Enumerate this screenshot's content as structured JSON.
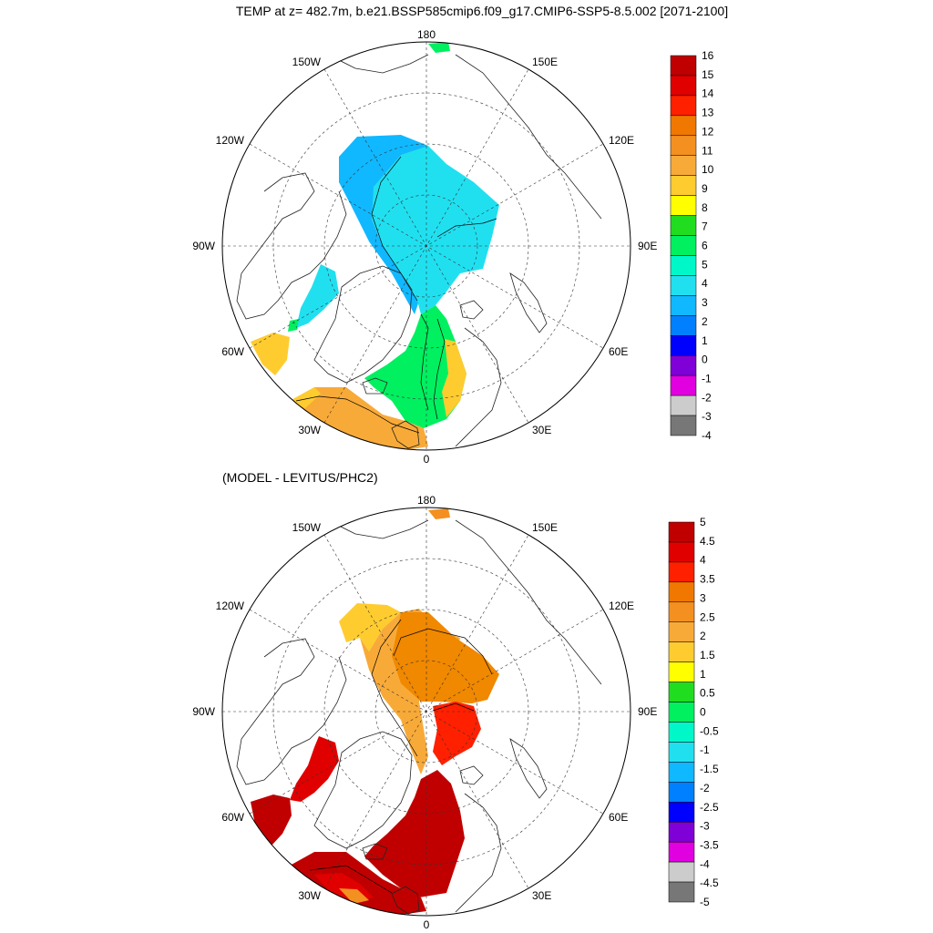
{
  "figure": {
    "title": "TEMP at z= 482.7m, b.e21.BSSP585cmip6.f09_g17.CMIP6-SSP5-8.5.002 [2071-2100]"
  },
  "panels": [
    {
      "id": "model",
      "subtitle": "",
      "variable": "TEMP",
      "depth": "482.7m",
      "lon_labels": {
        "top": "180",
        "bottom": "0",
        "left": "90W",
        "right": "90E",
        "upper_left": "150W",
        "upper_right": "150E",
        "mid_upper_left": "120W",
        "mid_upper_right": "120E",
        "mid_lower_left": "60W",
        "mid_lower_right": "60E",
        "lower_left": "30W",
        "lower_right": "30E"
      },
      "colorbar": {
        "labels": [
          "16",
          "15",
          "14",
          "13",
          "12",
          "11",
          "10",
          "9",
          "8",
          "7",
          "6",
          "5",
          "4",
          "3",
          "2",
          "1",
          "0",
          "-1",
          "-2",
          "-3",
          "-4"
        ],
        "colors": [
          "#c00000",
          "#e00000",
          "#ff2000",
          "#f07800",
          "#f49020",
          "#f8aa38",
          "#ffcc30",
          "#ffff00",
          "#20dd20",
          "#00f060",
          "#00f8c8",
          "#20e0f0",
          "#10b8ff",
          "#0080ff",
          "#0000ff",
          "#8000d8",
          "#e000e0",
          "#cccccc",
          "#777777"
        ]
      }
    },
    {
      "id": "difference",
      "subtitle": "(MODEL - LEVITUS/PHC2)",
      "lon_labels": {
        "top": "180",
        "bottom": "0",
        "left": "90W",
        "right": "90E",
        "upper_left": "150W",
        "upper_right": "150E",
        "mid_upper_left": "120W",
        "mid_upper_right": "120E",
        "mid_lower_left": "60W",
        "mid_lower_right": "60E",
        "lower_left": "30W",
        "lower_right": "30E"
      },
      "colorbar": {
        "labels": [
          "5",
          "4.5",
          "4",
          "3.5",
          "3",
          "2.5",
          "2",
          "1.5",
          "1",
          "0.5",
          "0",
          "-0.5",
          "-1",
          "-1.5",
          "-2",
          "-2.5",
          "-3",
          "-3.5",
          "-4",
          "-4.5",
          "-5"
        ],
        "colors": [
          "#c00000",
          "#e00000",
          "#ff2000",
          "#f07800",
          "#f49020",
          "#f8aa38",
          "#ffcc30",
          "#ffff00",
          "#20dd20",
          "#00f060",
          "#00f8c8",
          "#20e0f0",
          "#10b8ff",
          "#0080ff",
          "#0000ff",
          "#8000d8",
          "#e000e0",
          "#cccccc",
          "#777777"
        ]
      }
    }
  ]
}
